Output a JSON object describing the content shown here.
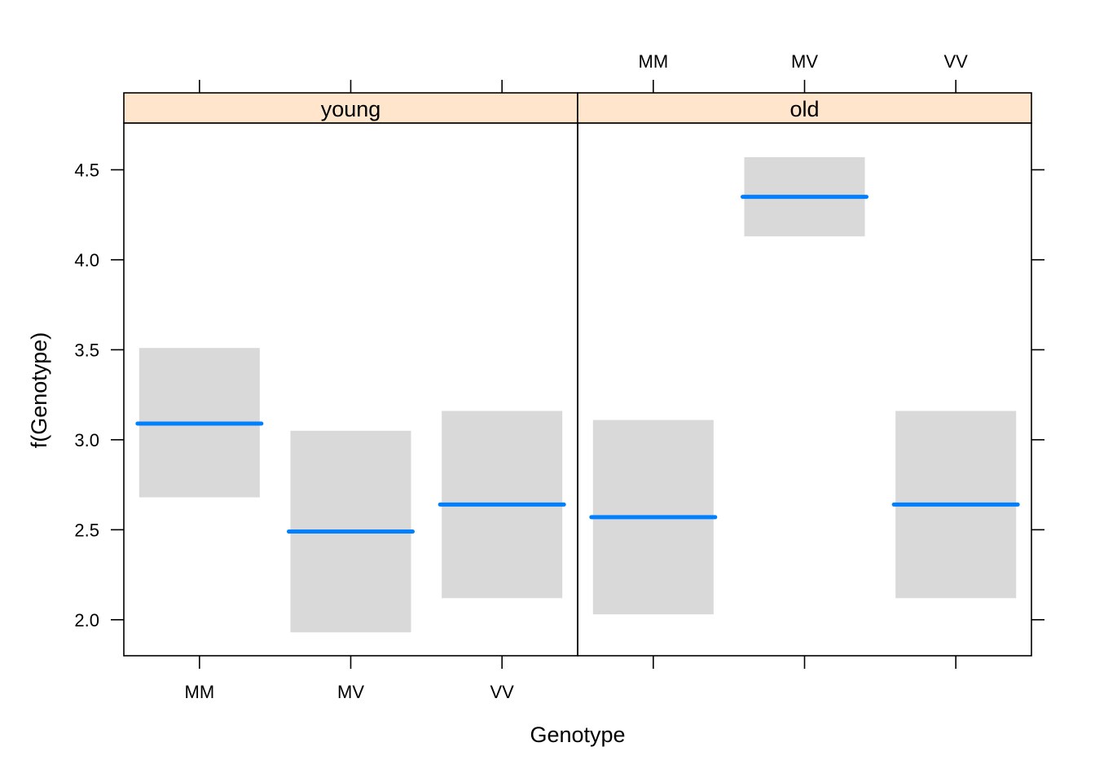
{
  "chart_data": {
    "type": "crossbar",
    "panels": [
      {
        "name": "young",
        "categories": [
          "MM",
          "MV",
          "VV"
        ],
        "fit": [
          3.09,
          2.49,
          2.64
        ],
        "lower": [
          2.68,
          1.93,
          2.12
        ],
        "upper": [
          3.51,
          3.05,
          3.16
        ]
      },
      {
        "name": "old",
        "categories": [
          "MM",
          "MV",
          "VV"
        ],
        "fit": [
          2.57,
          4.35,
          2.64
        ],
        "lower": [
          2.03,
          4.13,
          2.12
        ],
        "upper": [
          3.11,
          4.57,
          3.16
        ]
      }
    ],
    "xlabel": "Genotype",
    "ylabel": "f(Genotype)",
    "yticks": [
      "2.0",
      "2.5",
      "3.0",
      "3.5",
      "4.0",
      "4.5"
    ],
    "ylim": [
      1.8,
      4.76
    ],
    "colors": {
      "fit_line": "#0080ff",
      "interval_box": "#d9d9d9",
      "strip_bg": "#ffe5cc",
      "axis": "#000000"
    }
  }
}
